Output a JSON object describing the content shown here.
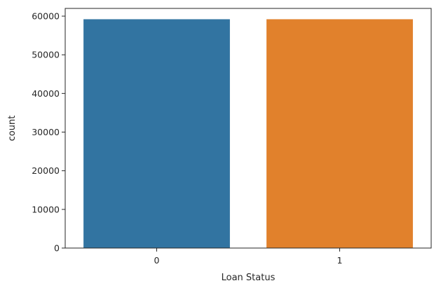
{
  "chart_data": {
    "type": "bar",
    "title": "",
    "xlabel": "Loan Status",
    "ylabel": "count",
    "categories": [
      "0",
      "1"
    ],
    "values": [
      59200,
      59200
    ],
    "colors": [
      "#3274a1",
      "#e1812c"
    ],
    "ylim": [
      0,
      62000
    ],
    "yticks": [
      0,
      10000,
      20000,
      30000,
      40000,
      50000,
      60000
    ],
    "ytick_labels": [
      "0",
      "10000",
      "20000",
      "30000",
      "40000",
      "50000",
      "60000"
    ],
    "grid": false,
    "legend": "none"
  }
}
